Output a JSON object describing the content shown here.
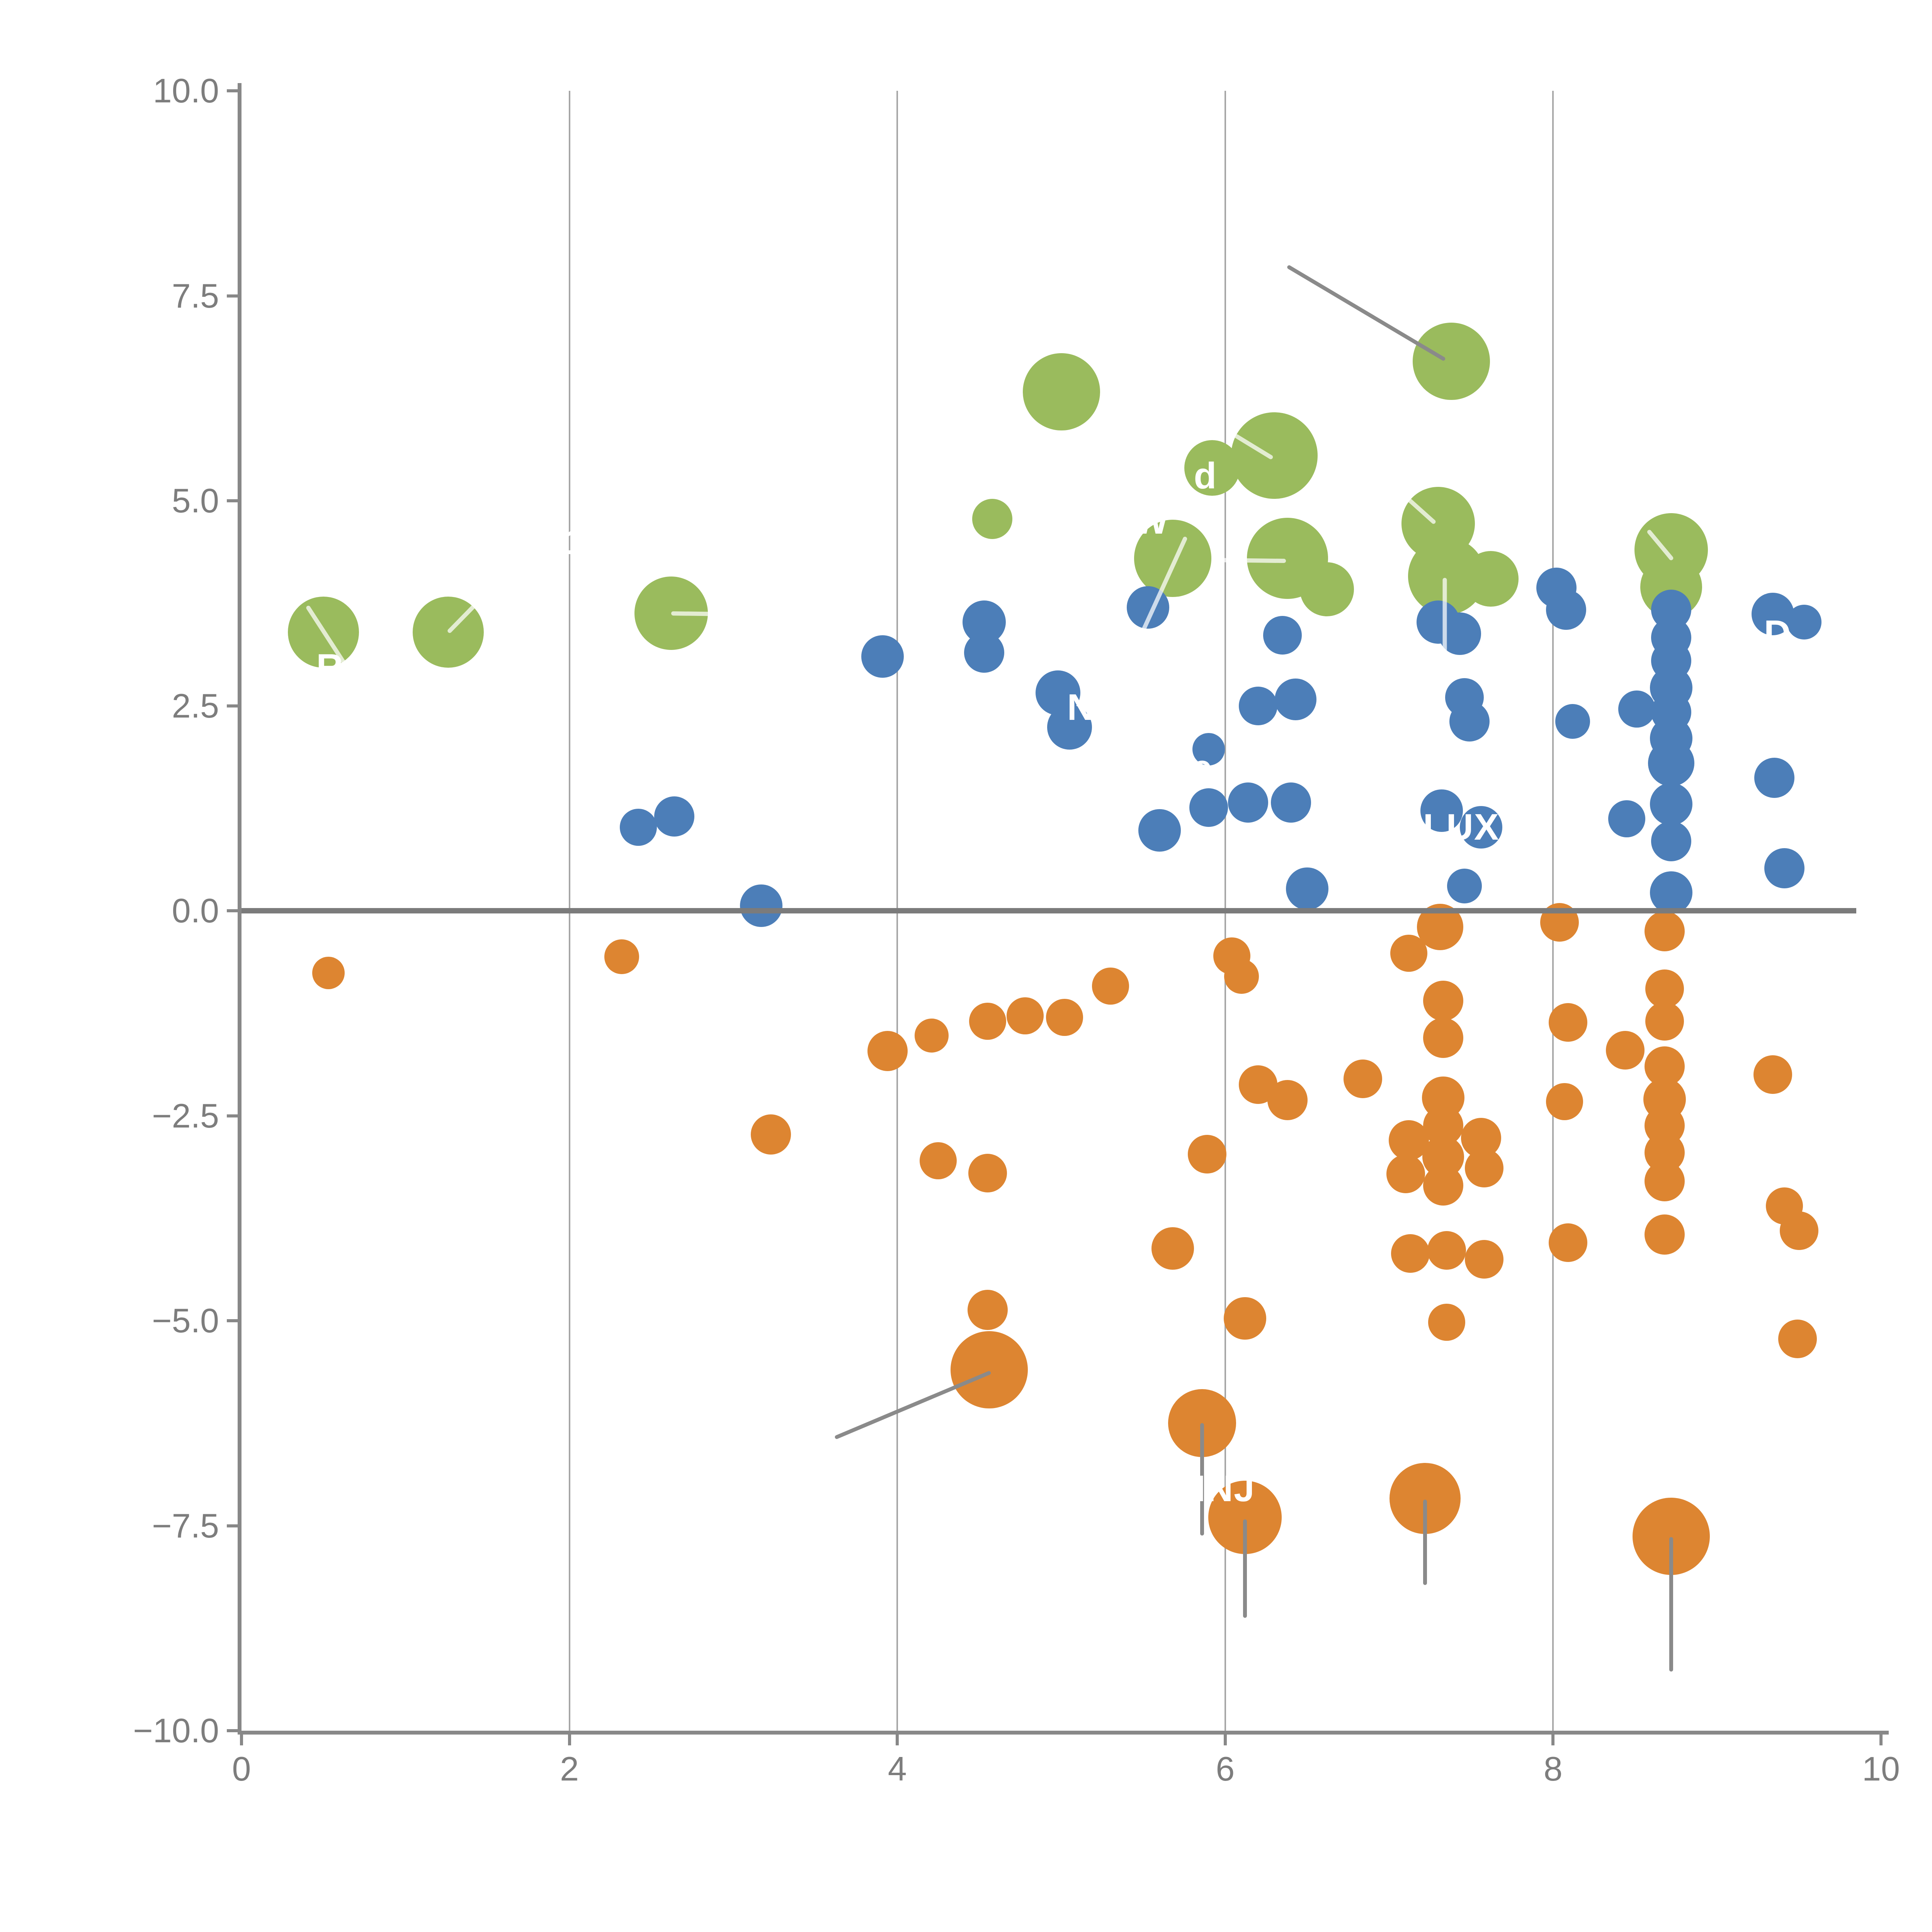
{
  "chart_data": {
    "type": "scatter",
    "title": "",
    "xlabel": "",
    "ylabel": "",
    "xlim": [
      0,
      10
    ],
    "ylim": [
      -10,
      10
    ],
    "grid": "vertical-only",
    "legend_position": "none",
    "x_ticks": [
      0,
      2,
      4,
      6,
      8,
      10
    ],
    "x_tick_labels": [
      "0",
      "2",
      "4",
      "6",
      "8",
      "10"
    ],
    "y_ticks": [
      10.0,
      7.5,
      5.0,
      2.5,
      0.0,
      -2.5,
      -5.0,
      -7.5,
      -10.0
    ],
    "y_tick_labels": [
      "10.0",
      "7.5",
      "5.0",
      "2.5",
      "0.0",
      "−2.5",
      "−5.0",
      "−7.5",
      "−10.0"
    ],
    "gridlines_x": [
      2,
      4,
      6,
      8
    ],
    "zero_line": {
      "y": 0,
      "x_start": 0,
      "x_end": 9.85
    },
    "series": [
      {
        "name": "green-group",
        "color": "#9ABB5D",
        "points": [
          {
            "x": 0.5,
            "y": 3.4,
            "r": 92
          },
          {
            "x": 1.26,
            "y": 3.4,
            "r": 92
          },
          {
            "x": 2.62,
            "y": 3.63,
            "r": 95
          },
          {
            "x": 5.0,
            "y": 6.33,
            "r": 100
          },
          {
            "x": 7.38,
            "y": 6.7,
            "r": 100
          },
          {
            "x": 5.92,
            "y": 5.4,
            "r": 72
          },
          {
            "x": 6.3,
            "y": 5.55,
            "r": 112
          },
          {
            "x": 4.58,
            "y": 4.78,
            "r": 52
          },
          {
            "x": 5.68,
            "y": 4.3,
            "r": 100
          },
          {
            "x": 6.38,
            "y": 4.3,
            "r": 105
          },
          {
            "x": 6.62,
            "y": 3.92,
            "r": 70
          },
          {
            "x": 7.3,
            "y": 4.72,
            "r": 95
          },
          {
            "x": 7.35,
            "y": 4.08,
            "r": 100
          },
          {
            "x": 7.62,
            "y": 4.05,
            "r": 72
          },
          {
            "x": 8.72,
            "y": 4.4,
            "r": 95
          },
          {
            "x": 8.72,
            "y": 3.95,
            "r": 80
          }
        ]
      },
      {
        "name": "blue-group",
        "color": "#4C7EB8",
        "points": [
          {
            "x": 2.42,
            "y": 1.02,
            "r": 48
          },
          {
            "x": 2.64,
            "y": 1.15,
            "r": 52
          },
          {
            "x": 3.17,
            "y": 0.06,
            "r": 55
          },
          {
            "x": 3.91,
            "y": 3.1,
            "r": 55
          },
          {
            "x": 4.53,
            "y": 3.52,
            "r": 56
          },
          {
            "x": 4.53,
            "y": 3.15,
            "r": 52
          },
          {
            "x": 4.98,
            "y": 2.66,
            "r": 58
          },
          {
            "x": 5.05,
            "y": 2.24,
            "r": 58
          },
          {
            "x": 5.53,
            "y": 3.7,
            "r": 55
          },
          {
            "x": 5.6,
            "y": 0.98,
            "r": 55
          },
          {
            "x": 5.9,
            "y": 1.97,
            "r": 42
          },
          {
            "x": 5.9,
            "y": 1.26,
            "r": 50
          },
          {
            "x": 6.14,
            "y": 1.32,
            "r": 52
          },
          {
            "x": 6.4,
            "y": 1.32,
            "r": 52
          },
          {
            "x": 6.2,
            "y": 2.5,
            "r": 50
          },
          {
            "x": 6.43,
            "y": 2.58,
            "r": 54
          },
          {
            "x": 6.35,
            "y": 3.36,
            "r": 50
          },
          {
            "x": 6.5,
            "y": 0.27,
            "r": 55
          },
          {
            "x": 7.3,
            "y": 3.52,
            "r": 56
          },
          {
            "x": 7.43,
            "y": 3.38,
            "r": 55
          },
          {
            "x": 7.46,
            "y": 2.6,
            "r": 50
          },
          {
            "x": 7.49,
            "y": 2.31,
            "r": 52
          },
          {
            "x": 7.32,
            "y": 1.22,
            "r": 55
          },
          {
            "x": 7.56,
            "y": 1.02,
            "r": 55
          },
          {
            "x": 7.46,
            "y": 0.3,
            "r": 45
          },
          {
            "x": 8.02,
            "y": 3.94,
            "r": 52
          },
          {
            "x": 8.08,
            "y": 3.67,
            "r": 52
          },
          {
            "x": 8.12,
            "y": 2.31,
            "r": 45
          },
          {
            "x": 8.51,
            "y": 2.46,
            "r": 48
          },
          {
            "x": 8.72,
            "y": 3.67,
            "r": 52
          },
          {
            "x": 8.72,
            "y": 3.33,
            "r": 52
          },
          {
            "x": 8.72,
            "y": 3.05,
            "r": 52
          },
          {
            "x": 8.72,
            "y": 2.72,
            "r": 55
          },
          {
            "x": 8.72,
            "y": 2.42,
            "r": 52
          },
          {
            "x": 8.72,
            "y": 2.1,
            "r": 55
          },
          {
            "x": 8.72,
            "y": 1.8,
            "r": 60
          },
          {
            "x": 8.72,
            "y": 1.3,
            "r": 55
          },
          {
            "x": 8.72,
            "y": 0.85,
            "r": 52
          },
          {
            "x": 8.72,
            "y": 0.22,
            "r": 55
          },
          {
            "x": 8.45,
            "y": 1.12,
            "r": 48
          },
          {
            "x": 9.34,
            "y": 3.62,
            "r": 55
          },
          {
            "x": 9.53,
            "y": 3.52,
            "r": 45
          },
          {
            "x": 9.35,
            "y": 1.62,
            "r": 52
          },
          {
            "x": 9.41,
            "y": 0.52,
            "r": 52
          }
        ]
      },
      {
        "name": "orange-group",
        "color": "#DD8531",
        "points": [
          {
            "x": 0.53,
            "y": -0.76,
            "r": 42
          },
          {
            "x": 2.32,
            "y": -0.56,
            "r": 45
          },
          {
            "x": 3.23,
            "y": -2.73,
            "r": 52
          },
          {
            "x": 3.94,
            "y": -1.71,
            "r": 52
          },
          {
            "x": 4.21,
            "y": -1.52,
            "r": 44
          },
          {
            "x": 4.55,
            "y": -1.35,
            "r": 48
          },
          {
            "x": 4.78,
            "y": -1.28,
            "r": 48
          },
          {
            "x": 5.02,
            "y": -1.3,
            "r": 48
          },
          {
            "x": 5.3,
            "y": -0.92,
            "r": 48
          },
          {
            "x": 4.25,
            "y": -3.05,
            "r": 48
          },
          {
            "x": 4.55,
            "y": -3.2,
            "r": 50
          },
          {
            "x": 4.55,
            "y": -4.87,
            "r": 52
          },
          {
            "x": 4.56,
            "y": -5.6,
            "r": 100
          },
          {
            "x": 5.68,
            "y": -4.12,
            "r": 55
          },
          {
            "x": 5.89,
            "y": -2.97,
            "r": 50
          },
          {
            "x": 6.04,
            "y": -0.55,
            "r": 48
          },
          {
            "x": 6.1,
            "y": -0.8,
            "r": 45
          },
          {
            "x": 6.2,
            "y": -2.12,
            "r": 50
          },
          {
            "x": 6.38,
            "y": -2.31,
            "r": 52
          },
          {
            "x": 6.12,
            "y": -4.97,
            "r": 55
          },
          {
            "x": 5.86,
            "y": -6.25,
            "r": 88
          },
          {
            "x": 6.12,
            "y": -7.4,
            "r": 95
          },
          {
            "x": 6.84,
            "y": -2.05,
            "r": 50
          },
          {
            "x": 7.12,
            "y": -0.52,
            "r": 48
          },
          {
            "x": 7.31,
            "y": -0.2,
            "r": 60
          },
          {
            "x": 7.12,
            "y": -2.8,
            "r": 52
          },
          {
            "x": 7.1,
            "y": -3.21,
            "r": 50
          },
          {
            "x": 7.33,
            "y": -1.1,
            "r": 52
          },
          {
            "x": 7.33,
            "y": -1.55,
            "r": 52
          },
          {
            "x": 7.33,
            "y": -2.28,
            "r": 55
          },
          {
            "x": 7.33,
            "y": -2.62,
            "r": 52
          },
          {
            "x": 7.33,
            "y": -3.0,
            "r": 54
          },
          {
            "x": 7.33,
            "y": -3.35,
            "r": 52
          },
          {
            "x": 7.56,
            "y": -2.77,
            "r": 52
          },
          {
            "x": 7.58,
            "y": -3.14,
            "r": 50
          },
          {
            "x": 7.13,
            "y": -4.18,
            "r": 50
          },
          {
            "x": 7.35,
            "y": -4.14,
            "r": 50
          },
          {
            "x": 7.58,
            "y": -4.25,
            "r": 50
          },
          {
            "x": 7.35,
            "y": -5.02,
            "r": 48
          },
          {
            "x": 7.22,
            "y": -7.17,
            "r": 92
          },
          {
            "x": 8.04,
            "y": -0.14,
            "r": 50
          },
          {
            "x": 8.09,
            "y": -1.36,
            "r": 50
          },
          {
            "x": 8.07,
            "y": -2.33,
            "r": 48
          },
          {
            "x": 8.09,
            "y": -4.05,
            "r": 50
          },
          {
            "x": 8.68,
            "y": -0.25,
            "r": 52
          },
          {
            "x": 8.68,
            "y": -0.95,
            "r": 50
          },
          {
            "x": 8.68,
            "y": -1.35,
            "r": 50
          },
          {
            "x": 8.44,
            "y": -1.7,
            "r": 50
          },
          {
            "x": 8.68,
            "y": -1.9,
            "r": 52
          },
          {
            "x": 8.68,
            "y": -2.3,
            "r": 55
          },
          {
            "x": 8.68,
            "y": -2.62,
            "r": 52
          },
          {
            "x": 8.68,
            "y": -2.95,
            "r": 52
          },
          {
            "x": 8.68,
            "y": -3.3,
            "r": 52
          },
          {
            "x": 8.68,
            "y": -3.95,
            "r": 52
          },
          {
            "x": 8.72,
            "y": -7.63,
            "r": 100
          },
          {
            "x": 9.34,
            "y": -2.0,
            "r": 50
          },
          {
            "x": 9.41,
            "y": -3.6,
            "r": 48
          },
          {
            "x": 9.5,
            "y": -3.9,
            "r": 50
          },
          {
            "x": 9.49,
            "y": -5.22,
            "r": 50
          }
        ]
      }
    ],
    "point_label_fragments": [
      {
        "text": "R",
        "x": 0.54,
        "y": 2.97
      },
      {
        "text": "1",
        "x": 2.04,
        "y": 4.5
      },
      {
        "text": "W",
        "x": 5.55,
        "y": 4.75
      },
      {
        "text": "d",
        "x": 5.88,
        "y": 5.3
      },
      {
        "text": "N",
        "x": 5.12,
        "y": 2.48
      },
      {
        "text": "e",
        "x": 5.86,
        "y": 1.74
      },
      {
        "text": "LUX",
        "x": 7.44,
        "y": 1.02
      },
      {
        "text": "INJ",
        "x": 6.0,
        "y": -7.05
      },
      {
        "text": "D",
        "x": 9.37,
        "y": 3.38
      }
    ],
    "leader_lines_pale": [
      {
        "x1": 0.4,
        "y1": 3.72,
        "x2": 0.64,
        "y2": 2.98
      },
      {
        "x1": 1.26,
        "y1": 3.4,
        "x2": 1.49,
        "y2": 3.87
      },
      {
        "x1": 2.62,
        "y1": 3.63,
        "x2": 2.99,
        "y2": 3.62
      },
      {
        "x1": 6.06,
        "y1": 5.8,
        "x2": 6.29,
        "y2": 5.52
      },
      {
        "x1": 5.76,
        "y1": 4.56,
        "x2": 5.5,
        "y2": 3.42
      },
      {
        "x1": 5.96,
        "y1": 4.28,
        "x2": 6.37,
        "y2": 4.27
      },
      {
        "x1": 7.04,
        "y1": 5.16,
        "x2": 7.28,
        "y2": 4.73
      },
      {
        "x1": 7.34,
        "y1": 4.06,
        "x2": 7.34,
        "y2": 2.88
      },
      {
        "x1": 8.58,
        "y1": 4.64,
        "x2": 8.73,
        "y2": 4.28
      }
    ],
    "leader_lines_gray": [
      {
        "x1": 6.38,
        "y1": 7.86,
        "x2": 7.34,
        "y2": 6.72
      },
      {
        "x1": 3.62,
        "y1": -6.43,
        "x2": 4.57,
        "y2": -5.63
      },
      {
        "x1": 5.86,
        "y1": -6.25,
        "x2": 5.86,
        "y2": -7.62
      },
      {
        "x1": 6.12,
        "y1": -7.42,
        "x2": 6.12,
        "y2": -8.62
      },
      {
        "x1": 7.22,
        "y1": -7.18,
        "x2": 7.22,
        "y2": -8.22
      },
      {
        "x1": 8.72,
        "y1": -7.64,
        "x2": 8.72,
        "y2": -9.28
      }
    ]
  },
  "colors": {
    "background": "#ffffff",
    "green": "#9ABB5D",
    "blue": "#4C7EB8",
    "orange": "#DD8531",
    "gridline": "#a6a6a6",
    "zero_line": "#7b7b7b",
    "spine": "#888888",
    "tick_label": "#7d7d7d",
    "point_label": "#ffffff",
    "leader_gray": "#8a8a8a"
  }
}
